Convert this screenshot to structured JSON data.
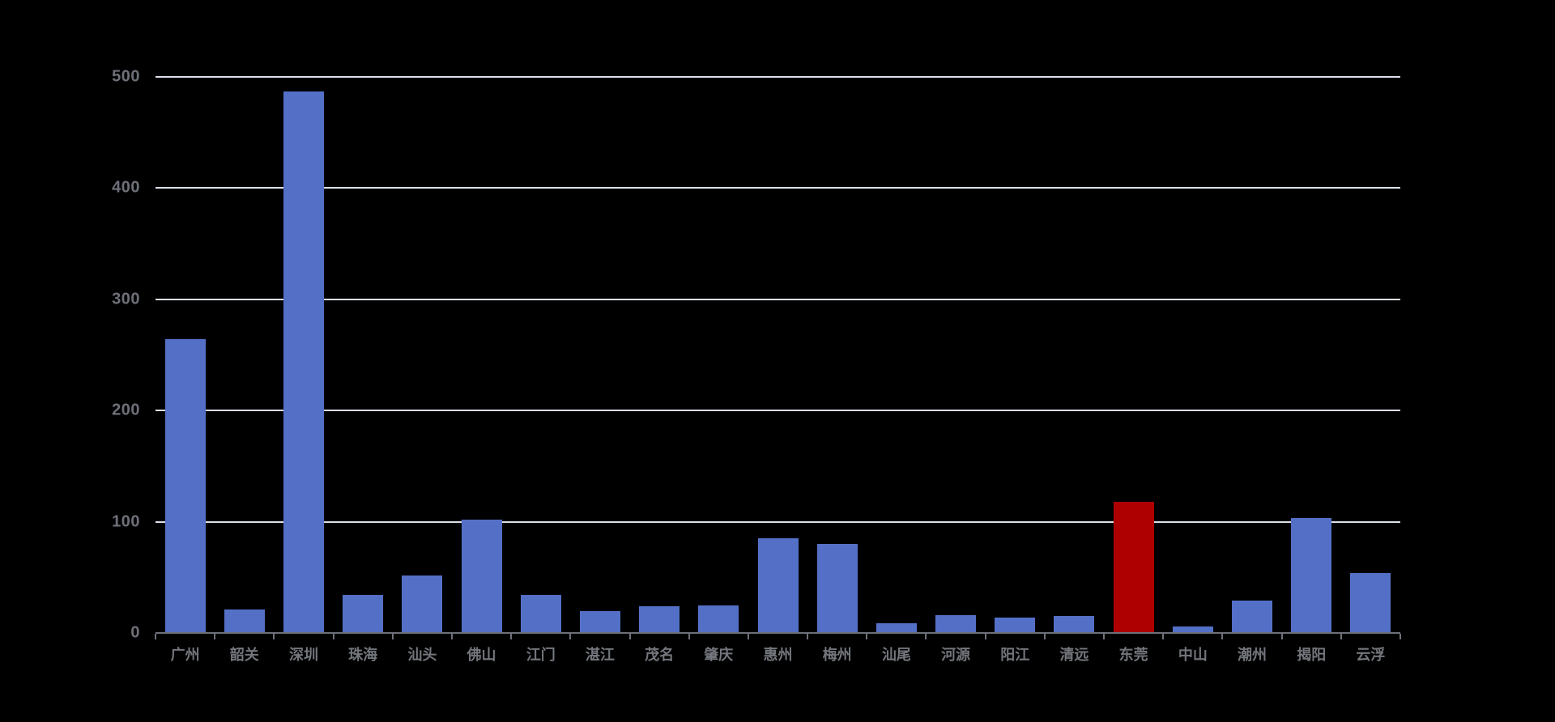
{
  "chart_data": {
    "type": "bar",
    "title": "",
    "xlabel": "",
    "ylabel": "",
    "categories": [
      "广州",
      "韶关",
      "深圳",
      "珠海",
      "汕头",
      "佛山",
      "江门",
      "湛江",
      "茂名",
      "肇庆",
      "惠州",
      "梅州",
      "汕尾",
      "河源",
      "阳江",
      "清远",
      "东莞",
      "中山",
      "潮州",
      "揭阳",
      "云浮"
    ],
    "values": [
      264,
      21,
      487,
      34,
      52,
      102,
      34,
      20,
      24,
      25,
      85,
      80,
      9,
      16,
      14,
      15,
      118,
      6,
      29,
      103,
      54
    ],
    "highlight_category": "东莞",
    "highlight_index": 16,
    "ylim": [
      0,
      500
    ],
    "yticks": [
      0,
      100,
      200,
      300,
      400,
      500
    ],
    "ytick_labels": [
      "0",
      "100",
      "200",
      "300",
      "400",
      "500"
    ],
    "grid": true,
    "legend_position": "none",
    "colors": {
      "background": "#000000",
      "bar_default": "#5470c6",
      "bar_highlight": "#ae0000",
      "gridline": "#dce0ea",
      "axis_line": "#6e7079",
      "tick_mark": "#6e7079",
      "y_tick_label": "#6e7079",
      "x_tick_label": "#73767c"
    }
  }
}
